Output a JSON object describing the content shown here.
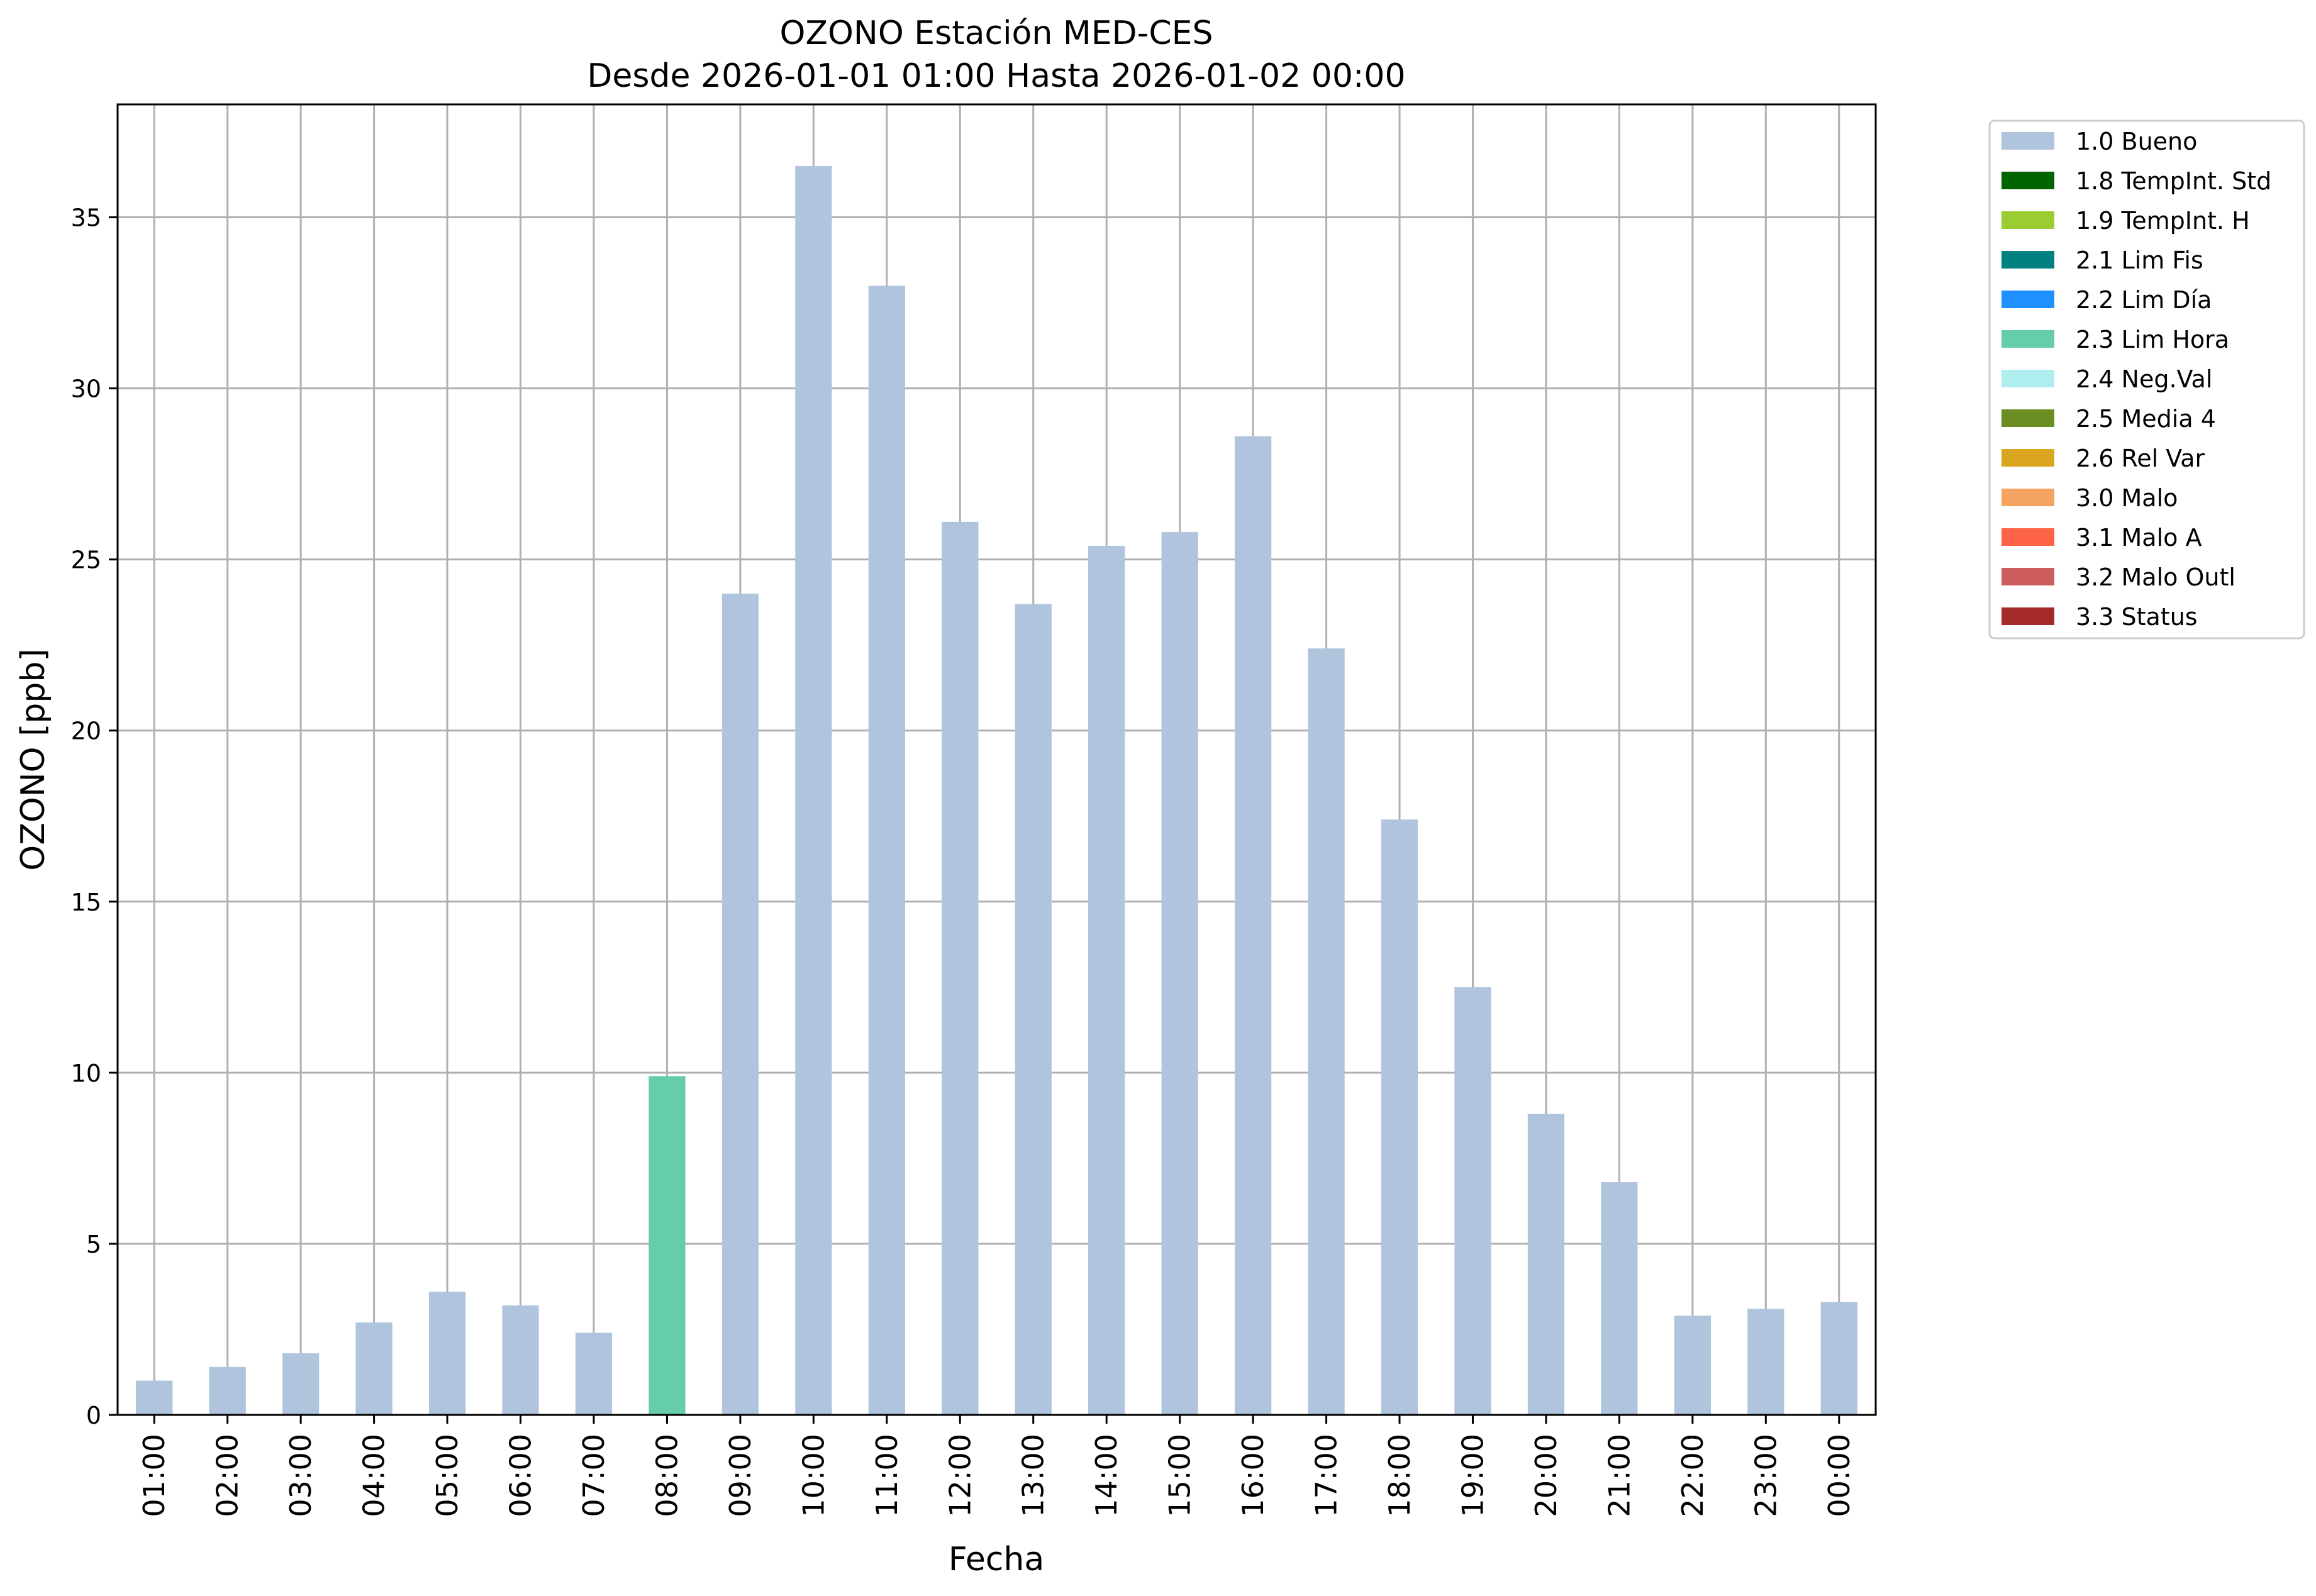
{
  "chart_data": {
    "type": "bar",
    "title": "OZONO Estación MED-CES",
    "subtitle": "Desde 2026-01-01 01:00 Hasta 2026-01-02 00:00",
    "xlabel": "Fecha",
    "ylabel": "OZONO [ppb]",
    "ylim": [
      0,
      38.3
    ],
    "yticks": [
      0,
      5,
      10,
      15,
      20,
      25,
      30,
      35
    ],
    "grid": true,
    "legend_position": "outside-top-right",
    "categories": [
      "01:00",
      "02:00",
      "03:00",
      "04:00",
      "05:00",
      "06:00",
      "07:00",
      "08:00",
      "09:00",
      "10:00",
      "11:00",
      "12:00",
      "13:00",
      "14:00",
      "15:00",
      "16:00",
      "17:00",
      "18:00",
      "19:00",
      "20:00",
      "21:00",
      "22:00",
      "23:00",
      "00:00"
    ],
    "values": [
      1.0,
      1.4,
      1.8,
      2.7,
      3.6,
      3.2,
      2.4,
      9.9,
      24.0,
      36.5,
      33.0,
      26.1,
      23.7,
      25.4,
      25.8,
      28.6,
      22.4,
      17.4,
      12.5,
      8.8,
      6.8,
      2.9,
      3.1,
      3.3
    ],
    "flags": [
      "1.0 Bueno",
      "1.0 Bueno",
      "1.0 Bueno",
      "1.0 Bueno",
      "1.0 Bueno",
      "1.0 Bueno",
      "1.0 Bueno",
      "2.3 Lim Hora",
      "1.0 Bueno",
      "1.0 Bueno",
      "1.0 Bueno",
      "1.0 Bueno",
      "1.0 Bueno",
      "1.0 Bueno",
      "1.0 Bueno",
      "1.0 Bueno",
      "1.0 Bueno",
      "1.0 Bueno",
      "1.0 Bueno",
      "1.0 Bueno",
      "1.0 Bueno",
      "1.0 Bueno",
      "1.0 Bueno",
      "1.0 Bueno"
    ],
    "legend": [
      {
        "label": "1.0 Bueno",
        "color": "#b0c4de"
      },
      {
        "label": "1.8 TempInt. Std",
        "color": "#006400"
      },
      {
        "label": "1.9 TempInt. H",
        "color": "#9acd32"
      },
      {
        "label": "2.1 Lim Fis",
        "color": "#008080"
      },
      {
        "label": "2.2 Lim Día",
        "color": "#1e90ff"
      },
      {
        "label": "2.3 Lim Hora",
        "color": "#66cdaa"
      },
      {
        "label": "2.4 Neg.Val",
        "color": "#afeeee"
      },
      {
        "label": "2.5 Media 4",
        "color": "#6b8e23"
      },
      {
        "label": "2.6 Rel Var",
        "color": "#daa520"
      },
      {
        "label": "3.0 Malo",
        "color": "#f4a460"
      },
      {
        "label": "3.1 Malo A",
        "color": "#ff6347"
      },
      {
        "label": "3.2 Malo Outl",
        "color": "#cd5c5c"
      },
      {
        "label": "3.3 Status",
        "color": "#a52a2a"
      }
    ]
  }
}
